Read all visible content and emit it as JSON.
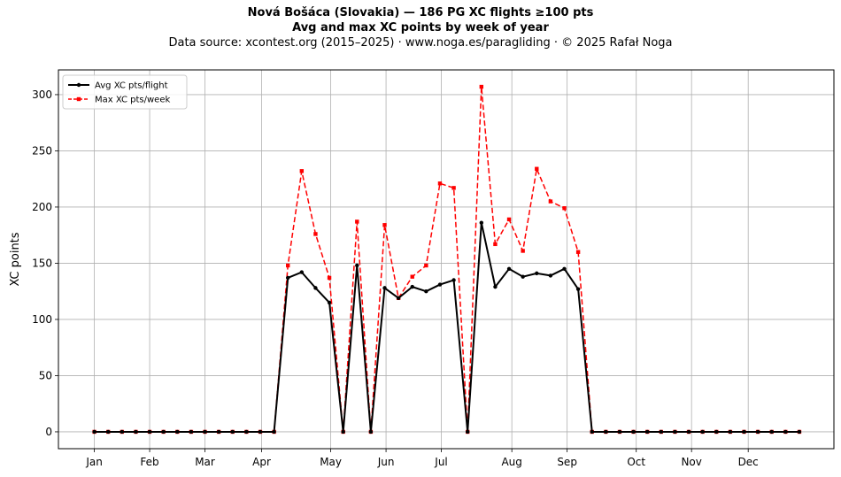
{
  "header": {
    "title_line1": "Nová Bošáca (Slovakia)  —  186 PG XC flights ≥100 pts",
    "title_line2": "Avg and max XC points by week of year",
    "source_line": "Data source: xcontest.org (2015–2025)  ·  www.noga.es/paragliding  ·  © 2025 Rafał Noga"
  },
  "chart_data": {
    "type": "line",
    "title": "Nová Bošáca (Slovakia)  —  186 PG XC flights ≥100 pts",
    "subtitle": "Avg and max XC points by week of year",
    "xlabel": "",
    "ylabel": "XC points",
    "x_unit": "week of year",
    "x": [
      1,
      2,
      3,
      4,
      5,
      6,
      7,
      8,
      9,
      10,
      11,
      12,
      13,
      14,
      15,
      16,
      17,
      18,
      19,
      20,
      21,
      22,
      23,
      24,
      25,
      26,
      27,
      28,
      29,
      30,
      31,
      32,
      33,
      34,
      35,
      36,
      37,
      38,
      39,
      40,
      41,
      42,
      43,
      44,
      45,
      46,
      47,
      48,
      49,
      50,
      51,
      52
    ],
    "x_ticks": [
      {
        "label": "Jan",
        "x": 1.0
      },
      {
        "label": "Feb",
        "x": 5.0
      },
      {
        "label": "Mar",
        "x": 9.0
      },
      {
        "label": "Apr",
        "x": 13.1
      },
      {
        "label": "May",
        "x": 18.1
      },
      {
        "label": "Jun",
        "x": 22.1
      },
      {
        "label": "Jul",
        "x": 26.1
      },
      {
        "label": "Aug",
        "x": 31.2
      },
      {
        "label": "Sep",
        "x": 35.2
      },
      {
        "label": "Oct",
        "x": 40.2
      },
      {
        "label": "Nov",
        "x": 44.2
      },
      {
        "label": "Dec",
        "x": 48.3
      }
    ],
    "xlim": [
      -1.6,
      54.5
    ],
    "ylim": [
      -15,
      322
    ],
    "y_ticks": [
      0,
      50,
      100,
      150,
      200,
      250,
      300
    ],
    "grid": true,
    "legend_position": "top-left",
    "series": [
      {
        "name": "Avg XC pts/flight",
        "color": "#000000",
        "style": "solid",
        "marker": "circle",
        "values": [
          0,
          0,
          0,
          0,
          0,
          0,
          0,
          0,
          0,
          0,
          0,
          0,
          0,
          0,
          137,
          142,
          128,
          115,
          0,
          148,
          0,
          128,
          119,
          129,
          125,
          131,
          135,
          0,
          186,
          129,
          145,
          138,
          141,
          139,
          145,
          127,
          0,
          0,
          0,
          0,
          0,
          0,
          0,
          0,
          0,
          0,
          0,
          0,
          0,
          0,
          0,
          0
        ]
      },
      {
        "name": "Max XC pts/week",
        "color": "#ff0000",
        "style": "dashed",
        "marker": "square",
        "values": [
          0,
          0,
          0,
          0,
          0,
          0,
          0,
          0,
          0,
          0,
          0,
          0,
          0,
          0,
          148,
          232,
          176,
          137,
          0,
          187,
          0,
          184,
          119,
          138,
          148,
          221,
          217,
          0,
          307,
          167,
          189,
          161,
          234,
          205,
          199,
          160,
          0,
          0,
          0,
          0,
          0,
          0,
          0,
          0,
          0,
          0,
          0,
          0,
          0,
          0,
          0,
          0
        ]
      }
    ]
  }
}
